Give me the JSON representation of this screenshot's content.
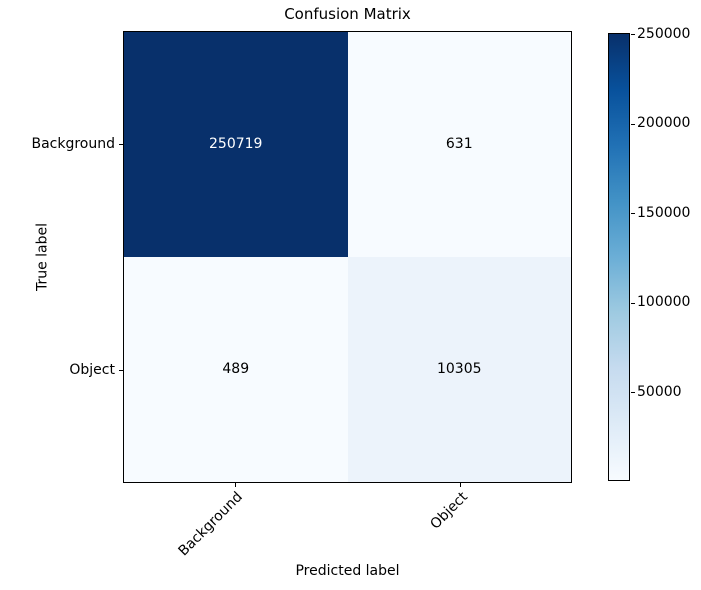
{
  "title": "Confusion Matrix",
  "chart_data": {
    "type": "heatmap",
    "title": "Confusion Matrix",
    "xlabel": "Predicted label",
    "ylabel": "True label",
    "x_categories": [
      "Background",
      "Object"
    ],
    "y_categories": [
      "Background",
      "Object"
    ],
    "rows": [
      [
        250719,
        631
      ],
      [
        489,
        10305
      ]
    ],
    "cell_colors": [
      [
        "#08306b",
        "#f7fbff"
      ],
      [
        "#f7fbff",
        "#ecf3fb"
      ]
    ],
    "cell_text_colors": [
      [
        "#ffffff",
        "#000000"
      ],
      [
        "#000000",
        "#000000"
      ]
    ],
    "vmin": 489,
    "vmax": 250719,
    "colormap": "Blues",
    "colormap_stops": [
      [
        0.0,
        "#f7fbff"
      ],
      [
        0.125,
        "#deebf7"
      ],
      [
        0.25,
        "#c6dbef"
      ],
      [
        0.375,
        "#9ecae1"
      ],
      [
        0.5,
        "#6baed6"
      ],
      [
        0.625,
        "#4292c6"
      ],
      [
        0.75,
        "#2171b5"
      ],
      [
        0.875,
        "#08519c"
      ],
      [
        1.0,
        "#08306b"
      ]
    ],
    "colorbar_ticks": [
      "50000",
      "100000",
      "150000",
      "200000",
      "250000"
    ],
    "legend_position": "colorbar-right",
    "grid": false
  }
}
